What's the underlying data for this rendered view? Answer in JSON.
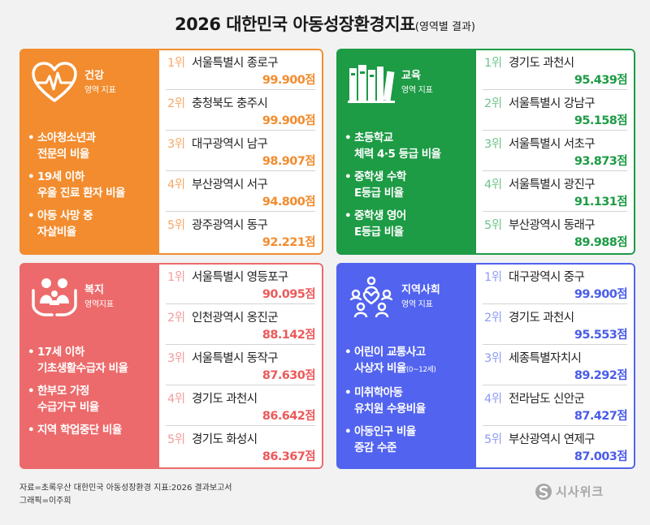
{
  "title": {
    "main": "2026 대한민국 아동성장환경지표",
    "sub": "(영역별 결과)"
  },
  "colors": {
    "health": "#f28c2e",
    "education": "#1d9b45",
    "welfare": "#ec6a6b",
    "community": "#5163ef"
  },
  "panels": {
    "health": {
      "icon": "heart-pulse-icon",
      "title": "건강",
      "subtitle": "영역 지표",
      "indicators": [
        {
          "l1": "소아청소년과",
          "l2": "전문의 비율"
        },
        {
          "l1": "19세 이하",
          "l2": "우울 진료 환자 비율"
        },
        {
          "l1": "아동 사망 중",
          "l2": "자살비율"
        }
      ],
      "ranks": [
        {
          "pos": "1위",
          "region": "서울특별시 종로구",
          "score": "99.900점"
        },
        {
          "pos": "2위",
          "region": "충청북도 충주시",
          "score": "99.900점"
        },
        {
          "pos": "3위",
          "region": "대구광역시 남구",
          "score": "98.907점"
        },
        {
          "pos": "4위",
          "region": "부산광역시 서구",
          "score": "94.800점"
        },
        {
          "pos": "5위",
          "region": "광주광역시 동구",
          "score": "92.221점"
        }
      ]
    },
    "education": {
      "icon": "books-icon",
      "title": "교육",
      "subtitle": "영역 지표",
      "indicators": [
        {
          "l1": "초등학교",
          "l2": "체력 4·5 등급 비율"
        },
        {
          "l1": "중학생 수학",
          "l2": "E등급 비율"
        },
        {
          "l1": "중학생 영어",
          "l2": "E등급 비율"
        }
      ],
      "ranks": [
        {
          "pos": "1위",
          "region": "경기도 과천시",
          "score": "95.439점"
        },
        {
          "pos": "2위",
          "region": "서울특별시 강남구",
          "score": "95.158점"
        },
        {
          "pos": "3위",
          "region": "서울특별시 서초구",
          "score": "93.873점"
        },
        {
          "pos": "4위",
          "region": "서울특별시 광진구",
          "score": "91.131점"
        },
        {
          "pos": "5위",
          "region": "부산광역시 동래구",
          "score": "89.988점"
        }
      ]
    },
    "welfare": {
      "icon": "family-hands-icon",
      "title": "복지",
      "subtitle": "영역지표",
      "indicators": [
        {
          "l1": "17세 이하",
          "l2": "기초생활수급자 비율"
        },
        {
          "l1": "한부모 가정",
          "l2": "수급가구 비율"
        },
        {
          "l1": "지역 학업중단 비율",
          "l2": ""
        }
      ],
      "ranks": [
        {
          "pos": "1위",
          "region": "서울특별시 영등포구",
          "score": "90.095점"
        },
        {
          "pos": "2위",
          "region": "인천광역시 옹진군",
          "score": "88.142점"
        },
        {
          "pos": "3위",
          "region": "서울특별시 동작구",
          "score": "87.630점"
        },
        {
          "pos": "4위",
          "region": "경기도 과천시",
          "score": "86.642점"
        },
        {
          "pos": "5위",
          "region": "경기도 화성시",
          "score": "86.367점"
        }
      ]
    },
    "community": {
      "icon": "community-people-icon",
      "title": "지역사회",
      "subtitle": "영역 지표",
      "indicators": [
        {
          "l1": "어린이 교통사고",
          "l2": "사상자 비율",
          "note": "(0~12세)"
        },
        {
          "l1": "미취학아동",
          "l2": "유치원 수용비율"
        },
        {
          "l1": "아동인구 비율",
          "l2": "증감 수준"
        }
      ],
      "ranks": [
        {
          "pos": "1위",
          "region": "대구광역시 중구",
          "score": "99.900점"
        },
        {
          "pos": "2위",
          "region": "경기도 과천시",
          "score": "95.553점"
        },
        {
          "pos": "3위",
          "region": "세종특별자치시",
          "score": "89.292점"
        },
        {
          "pos": "4위",
          "region": "전라남도 신안군",
          "score": "87.427점"
        },
        {
          "pos": "5위",
          "region": "부산광역시 연제구",
          "score": "87.003점"
        }
      ]
    }
  },
  "source": {
    "line1": "자료=초록우산 대한민국 아동성장환경 지표:2026 결과보고서",
    "line2": "그래픽=이주희"
  },
  "logo": {
    "icon": "sisaweek-logo-icon",
    "text": "시사위크"
  }
}
